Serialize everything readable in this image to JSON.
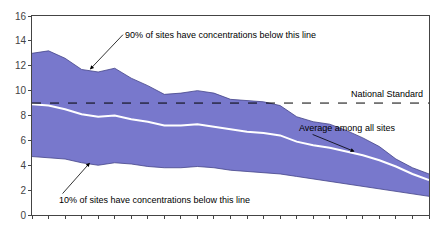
{
  "chart_data": {
    "type": "band",
    "x": [
      0,
      1,
      2,
      3,
      4,
      5,
      6,
      7,
      8,
      9,
      10,
      11,
      12,
      13,
      14,
      15,
      16,
      17,
      18,
      19,
      20,
      21,
      22,
      23,
      24
    ],
    "series": [
      {
        "color": "#444488",
        "values": [
          4.7,
          4.6,
          4.5,
          4.2,
          4.0,
          4.2,
          4.1,
          3.9,
          3.8,
          3.8,
          3.9,
          3.8,
          3.6,
          3.5,
          3.4,
          3.3,
          3.1,
          2.9,
          2.7,
          2.5,
          2.3,
          2.1,
          1.9,
          1.7,
          1.5
        ]
      },
      {
        "color": "#444488",
        "values": [
          13.0,
          13.2,
          12.6,
          11.7,
          11.5,
          11.8,
          11.0,
          10.4,
          9.7,
          9.8,
          10.0,
          9.8,
          9.3,
          9.2,
          9.1,
          8.8,
          7.9,
          7.5,
          7.3,
          6.8,
          6.2,
          5.5,
          4.5,
          3.8,
          3.3
        ]
      },
      {
        "color": "#ffffff",
        "values": [
          8.9,
          8.8,
          8.5,
          8.1,
          7.9,
          8.0,
          7.7,
          7.5,
          7.2,
          7.2,
          7.3,
          7.1,
          6.9,
          6.7,
          6.6,
          6.4,
          5.9,
          5.6,
          5.4,
          5.1,
          4.8,
          4.4,
          3.9,
          3.3,
          2.8
        ]
      }
    ],
    "color": "#7878cc",
    "reference_line": {
      "value": 9.0,
      "text": "National Standard",
      "line_style": "dashed",
      "color": "#000000"
    },
    "annotations": [
      "10% of sites have concentrations below this line",
      "90% of sites have concentrations below this line",
      "Average among all sites"
    ],
    "xlim": [
      0,
      24
    ],
    "xticks": [
      0,
      1,
      2,
      3,
      4,
      5,
      6,
      7,
      8,
      9,
      10,
      11,
      12,
      13,
      14,
      15,
      16,
      17,
      18,
      19,
      20,
      21,
      22,
      23,
      24
    ],
    "ylim": [
      0,
      16
    ],
    "yticks": [
      0,
      2,
      4,
      6,
      8,
      10,
      12,
      14,
      16
    ],
    "tick_labels": "y",
    "grid": false
  }
}
